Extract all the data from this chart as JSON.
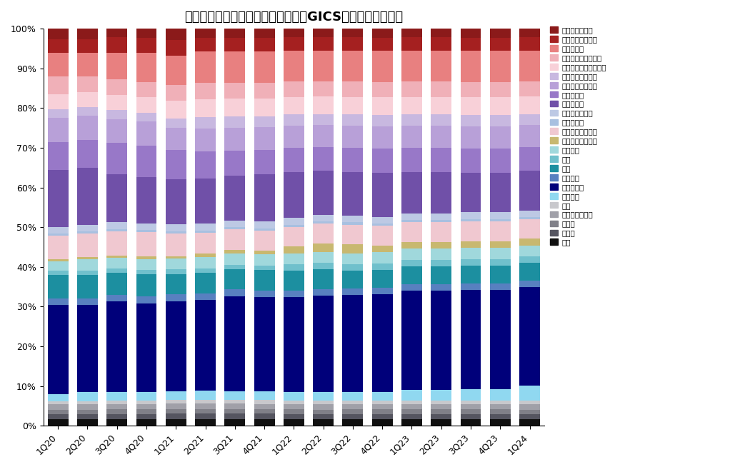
{
  "title": "外资头部主动型管理机构持有中资股GICS二级行业仓位分布",
  "categories": [
    "1Q20",
    "2Q20",
    "3Q20",
    "4Q20",
    "1Q21",
    "2Q21",
    "3Q21",
    "4Q21",
    "1Q22",
    "2Q22",
    "3Q22",
    "4Q22",
    "1Q23",
    "2Q23",
    "3Q23",
    "4Q23",
    "1Q24"
  ],
  "legend_labels": [
    "技术硬件与设备",
    "半导体产品与设备",
    "软件与服务",
    "医疗保健设备与服务",
    "制药、生物科技和生命",
    "汽车与汽车零部件",
    "耐用消费品与服装",
    "消费者服务",
    "可选品零售",
    "家庭与个人用品",
    "必需品零售",
    "食品、饮料与烟草",
    "房地产管理和开发",
    "金融服务",
    "保险",
    "银行",
    "电信服务",
    "媒体与娱乐",
    "公用事业",
    "交运",
    "商业和专业服务",
    "资本品",
    "原材料",
    "能源"
  ],
  "colors": [
    "#8B1A1A",
    "#A52020",
    "#E88080",
    "#F0B0B8",
    "#F8D0D8",
    "#C8B8E0",
    "#B8A0D8",
    "#9878C8",
    "#7050A8",
    "#BDC9E4",
    "#A8C0E0",
    "#F0C8D0",
    "#C8B870",
    "#A0D8DC",
    "#70C0CC",
    "#1C8FA0",
    "#5880C0",
    "#00007A",
    "#90D8F0",
    "#C8C8CC",
    "#A0A0A8",
    "#808088",
    "#555560",
    "#101010"
  ],
  "stack_order": [
    "能源",
    "原材料",
    "资本品",
    "商业和专业服务",
    "交运",
    "公用事业",
    "媒体与娱乐",
    "电信服务",
    "银行",
    "保险",
    "金融服务",
    "房地产管理和开发",
    "食品、饮料与烟草",
    "必需品零售",
    "家庭与个人用品",
    "可选品零售",
    "消费者服务",
    "耐用消费品与服装",
    "汽车与汽车零部件",
    "制药、生物科技和生命",
    "医疗保健设备与服务",
    "软件与服务",
    "半导体产品与设备",
    "技术硬件与设备"
  ],
  "data": {
    "能源": [
      1.5,
      1.5,
      1.5,
      1.5,
      1.5,
      1.5,
      1.5,
      1.5,
      1.5,
      1.5,
      1.5,
      1.5,
      1.5,
      1.5,
      1.5,
      1.5,
      1.5
    ],
    "原材料": [
      1.2,
      1.2,
      1.2,
      1.2,
      1.2,
      1.2,
      1.2,
      1.2,
      1.2,
      1.2,
      1.2,
      1.2,
      1.2,
      1.2,
      1.2,
      1.2,
      1.2
    ],
    "资本品": [
      1.0,
      1.0,
      1.0,
      1.0,
      1.0,
      1.0,
      1.0,
      1.0,
      1.0,
      1.0,
      1.0,
      1.0,
      1.0,
      1.0,
      1.0,
      1.0,
      1.0
    ],
    "商业和专业服务": [
      1.2,
      1.2,
      1.2,
      1.2,
      1.2,
      1.2,
      1.2,
      1.2,
      1.2,
      1.2,
      1.2,
      1.2,
      1.2,
      1.2,
      1.2,
      1.2,
      1.2
    ],
    "交运": [
      0.8,
      0.8,
      0.8,
      0.8,
      0.8,
      0.8,
      0.8,
      0.8,
      0.8,
      0.8,
      0.8,
      0.8,
      0.8,
      0.8,
      0.8,
      0.8,
      0.8
    ],
    "公用事业": [
      1.5,
      2.0,
      2.0,
      2.0,
      2.0,
      2.0,
      2.0,
      2.0,
      2.0,
      2.0,
      2.0,
      2.0,
      2.5,
      2.5,
      2.5,
      2.5,
      3.5
    ],
    "媒体与娱乐": [
      20.5,
      20.0,
      20.5,
      20.0,
      20.0,
      20.0,
      21.0,
      21.0,
      21.5,
      22.0,
      22.0,
      22.0,
      22.5,
      22.5,
      22.5,
      22.5,
      22.5
    ],
    "电信服务": [
      1.5,
      1.5,
      1.5,
      1.5,
      1.5,
      1.5,
      1.5,
      1.5,
      1.5,
      1.5,
      1.5,
      1.5,
      1.5,
      1.5,
      1.5,
      1.5,
      1.5
    ],
    "银行": [
      5.5,
      5.5,
      5.0,
      5.0,
      4.5,
      4.5,
      4.5,
      4.5,
      4.5,
      4.5,
      4.0,
      4.0,
      4.0,
      4.0,
      4.0,
      4.0,
      4.0
    ],
    "保险": [
      1.0,
      1.0,
      1.0,
      1.0,
      1.0,
      1.0,
      1.0,
      1.0,
      1.5,
      1.5,
      1.5,
      1.5,
      1.5,
      1.5,
      1.5,
      1.5,
      1.5
    ],
    "金融服务": [
      2.0,
      2.5,
      2.5,
      2.5,
      2.5,
      2.5,
      2.5,
      2.5,
      2.5,
      2.5,
      2.5,
      2.5,
      2.5,
      2.5,
      2.5,
      2.5,
      2.5
    ],
    "房地产管理和开发": [
      0.5,
      0.5,
      0.5,
      0.5,
      0.5,
      0.8,
      0.8,
      0.8,
      1.5,
      2.0,
      2.0,
      1.5,
      1.5,
      1.5,
      1.5,
      1.5,
      1.5
    ],
    "食品、饮料与烟草": [
      5.5,
      5.5,
      5.5,
      5.5,
      5.0,
      4.5,
      4.5,
      4.5,
      4.5,
      4.5,
      4.5,
      4.5,
      4.5,
      4.5,
      4.5,
      4.5,
      4.5
    ],
    "必需品零售": [
      0.5,
      0.5,
      0.5,
      0.5,
      0.5,
      0.5,
      0.5,
      0.5,
      0.5,
      0.5,
      0.5,
      0.5,
      0.5,
      0.5,
      0.5,
      0.5,
      0.5
    ],
    "家庭与个人用品": [
      1.5,
      1.5,
      1.5,
      1.5,
      1.5,
      1.5,
      1.5,
      1.5,
      1.5,
      1.5,
      1.5,
      1.5,
      1.5,
      1.5,
      1.5,
      1.5,
      1.5
    ],
    "可选品零售": [
      13.0,
      13.0,
      11.0,
      10.5,
      10.0,
      10.0,
      10.0,
      10.5,
      10.5,
      10.0,
      10.0,
      10.0,
      9.5,
      9.5,
      9.0,
      9.0,
      9.0
    ],
    "消费者服务": [
      6.5,
      6.5,
      7.0,
      7.0,
      6.5,
      6.0,
      5.5,
      5.5,
      5.5,
      5.5,
      5.5,
      5.5,
      5.5,
      5.5,
      5.5,
      5.5,
      5.5
    ],
    "耐用消费品与服装": [
      5.5,
      5.5,
      5.5,
      5.5,
      5.0,
      5.0,
      5.0,
      5.0,
      5.0,
      5.0,
      5.0,
      5.0,
      5.0,
      5.0,
      5.0,
      5.0,
      5.0
    ],
    "汽车与汽车零部件": [
      2.0,
      2.0,
      2.0,
      2.0,
      2.0,
      2.5,
      2.5,
      2.5,
      2.5,
      2.5,
      2.5,
      2.5,
      2.5,
      2.5,
      2.5,
      2.5,
      2.5
    ],
    "制药、生物科技和生命": [
      3.5,
      3.5,
      3.5,
      3.5,
      4.0,
      4.0,
      4.0,
      4.0,
      4.0,
      4.0,
      4.0,
      4.0,
      4.0,
      4.0,
      4.0,
      4.0,
      4.0
    ],
    "医疗保健设备与服务": [
      4.0,
      3.5,
      3.5,
      3.5,
      3.5,
      3.5,
      3.5,
      3.5,
      3.5,
      3.5,
      3.5,
      3.5,
      3.5,
      3.5,
      3.5,
      3.5,
      3.5
    ],
    "软件与服务": [
      5.5,
      5.5,
      6.0,
      6.5,
      6.5,
      7.0,
      7.0,
      7.0,
      7.0,
      7.0,
      7.0,
      7.0,
      7.0,
      7.0,
      7.0,
      7.0,
      7.0
    ],
    "半导体产品与设备": [
      3.0,
      3.0,
      3.5,
      3.5,
      3.5,
      3.0,
      3.0,
      3.0,
      3.0,
      3.0,
      3.0,
      3.0,
      3.0,
      3.0,
      3.0,
      3.0,
      3.0
    ],
    "技术硬件与设备": [
      2.5,
      2.5,
      2.0,
      2.0,
      2.5,
      2.0,
      2.0,
      2.0,
      2.0,
      2.0,
      2.0,
      2.0,
      2.0,
      2.0,
      2.0,
      2.0,
      2.0
    ]
  }
}
